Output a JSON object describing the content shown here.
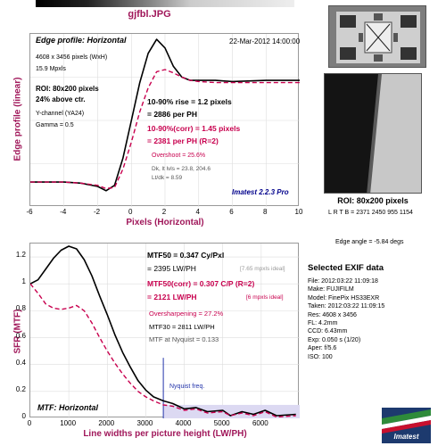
{
  "file_title": "gjfbl.JPG",
  "edge": {
    "header_left": "Edge profile: Horizontal",
    "header_right": "22-Mar-2012 14:00:00",
    "pixels_wxh": "4608 x 3456 pixels (WxH)",
    "mpxls": "15.9 Mpxls",
    "roi": "ROI: 80x200 pixels",
    "above_ctr": "24% above ctr.",
    "channel": "Y-channel  (YA24)",
    "gamma": "Gamma = 0.5",
    "rise": "10-90% rise = 1.2 pixels",
    "per_ph": "= 2886 per PH",
    "rise_corr": "10-90%(corr) = 1.45 pixels",
    "per_ph_corr": "= 2381 per PH  (R=2)",
    "overshoot": "Overshoot = 25.6%",
    "dk_lt": "Dk, lt lvls = 23.8, 204.6",
    "ltdk": "Lt/dk = 8.59",
    "version": "Imatest 2.2.3 Pro"
  },
  "mtf": {
    "mtf50": "MTF50 = 0.347 Cy/Pxl",
    "mtf50_lwph": "= 2395 LW/PH",
    "mtf50_ideal": "[7.65 mpxls ideal]",
    "mtf50c": "MTF50(corr) = 0.307 C/P  (R=2)",
    "mtf50c_lwph": "= 2121 LW/PH",
    "mtf50c_ideal": "[6 mpxls ideal]",
    "oversharpening": "Oversharpening = 27.2%",
    "mtf30": "MTF30 = 2811 LW/PH",
    "nyquist_val": "MTF at Nyquist = 0.133",
    "nyquist_label": "Nyquist freq.",
    "plot_label": "MTF: Horizontal"
  },
  "right": {
    "roi_caption": "ROI: 80x200 pixels",
    "lrtb": "L R T B = 2371  2450  955 1154",
    "edge_angle": "Edge angle = -5.84 degs",
    "exif_title": "Selected EXIF data",
    "exif": [
      "File:  2012:03:22 11:09:18",
      "Make:  FUJIFILM",
      "Model:  FinePix HS33EXR",
      "Taken:  2012:03:22 11:09:15",
      "Res:    4608 x 3456",
      "FL:      4.2mm",
      "CCD:   6.43mm",
      "Exp:   0.050 s  (1/20)",
      "Aper:  f/5.6",
      "ISO:   100"
    ],
    "logo_text": "Imatest"
  },
  "chart_data": [
    {
      "type": "line",
      "title": "Edge profile: Horizontal",
      "xlabel": "Pixels (Horizontal)",
      "ylabel": "Edge profile (linear)",
      "xlim": [
        -6,
        10
      ],
      "ylim": [
        0,
        1.6
      ],
      "xticks": [
        -6,
        -4,
        -2,
        0,
        2,
        4,
        6,
        8,
        10
      ],
      "series": [
        {
          "color": "#000000",
          "dash": false,
          "x": [
            -6,
            -4,
            -3,
            -2,
            -1.5,
            -1,
            -0.5,
            0,
            0.5,
            1,
            1.5,
            2,
            2.5,
            3,
            3.5,
            4,
            5,
            6,
            8,
            10
          ],
          "y": [
            0.23,
            0.23,
            0.22,
            0.19,
            0.15,
            0.2,
            0.45,
            0.8,
            1.15,
            1.42,
            1.55,
            1.47,
            1.3,
            1.2,
            1.17,
            1.17,
            1.17,
            1.16,
            1.17,
            1.17
          ]
        },
        {
          "color": "#c8004e",
          "dash": true,
          "x": [
            -6,
            -4,
            -3,
            -2,
            -1.5,
            -1,
            -0.5,
            0,
            0.5,
            1,
            1.5,
            2,
            2.5,
            3,
            3.5,
            4,
            5,
            6,
            8,
            10
          ],
          "y": [
            0.23,
            0.23,
            0.22,
            0.2,
            0.17,
            0.18,
            0.35,
            0.6,
            0.88,
            1.1,
            1.25,
            1.27,
            1.24,
            1.2,
            1.17,
            1.16,
            1.15,
            1.15,
            1.15,
            1.15
          ]
        }
      ]
    },
    {
      "type": "line",
      "title": "MTF: Horizontal",
      "xlabel": "Line widths per picture height (LW/PH)",
      "ylabel": "SFR (MTF)",
      "xlim": [
        0,
        7000
      ],
      "ylim": [
        0,
        1.3
      ],
      "xticks": [
        0,
        1000,
        2000,
        3000,
        4000,
        5000,
        6000
      ],
      "yticks": [
        0,
        0.2,
        0.4,
        0.6,
        0.8,
        1,
        1.2
      ],
      "nyquist_x": 3456,
      "series": [
        {
          "color": "#000000",
          "dash": false,
          "x": [
            0,
            200,
            400,
            600,
            800,
            1000,
            1200,
            1400,
            1600,
            1800,
            2000,
            2200,
            2400,
            2600,
            2800,
            3000,
            3200,
            3456,
            3700,
            4000,
            4300,
            4600,
            5000,
            5200,
            5500,
            5800,
            6100,
            6400,
            6900
          ],
          "y": [
            1.0,
            1.03,
            1.11,
            1.19,
            1.25,
            1.28,
            1.26,
            1.18,
            1.06,
            0.91,
            0.77,
            0.62,
            0.49,
            0.38,
            0.28,
            0.21,
            0.16,
            0.13,
            0.11,
            0.07,
            0.08,
            0.05,
            0.06,
            0.02,
            0.05,
            0.03,
            0.06,
            0.02,
            0.03
          ]
        },
        {
          "color": "#c8004e",
          "dash": true,
          "x": [
            0,
            200,
            400,
            600,
            800,
            1000,
            1200,
            1400,
            1600,
            1800,
            2000,
            2200,
            2400,
            2600,
            2800,
            3000,
            3200,
            3456,
            3700,
            4000,
            4300,
            4600,
            5000,
            5200,
            5500,
            5800,
            6100,
            6400,
            6900
          ],
          "y": [
            1.0,
            0.93,
            0.85,
            0.82,
            0.81,
            0.82,
            0.84,
            0.8,
            0.71,
            0.6,
            0.5,
            0.41,
            0.33,
            0.26,
            0.2,
            0.16,
            0.13,
            0.1,
            0.09,
            0.06,
            0.07,
            0.04,
            0.05,
            0.02,
            0.04,
            0.02,
            0.05,
            0.01,
            0.02
          ]
        }
      ]
    }
  ]
}
